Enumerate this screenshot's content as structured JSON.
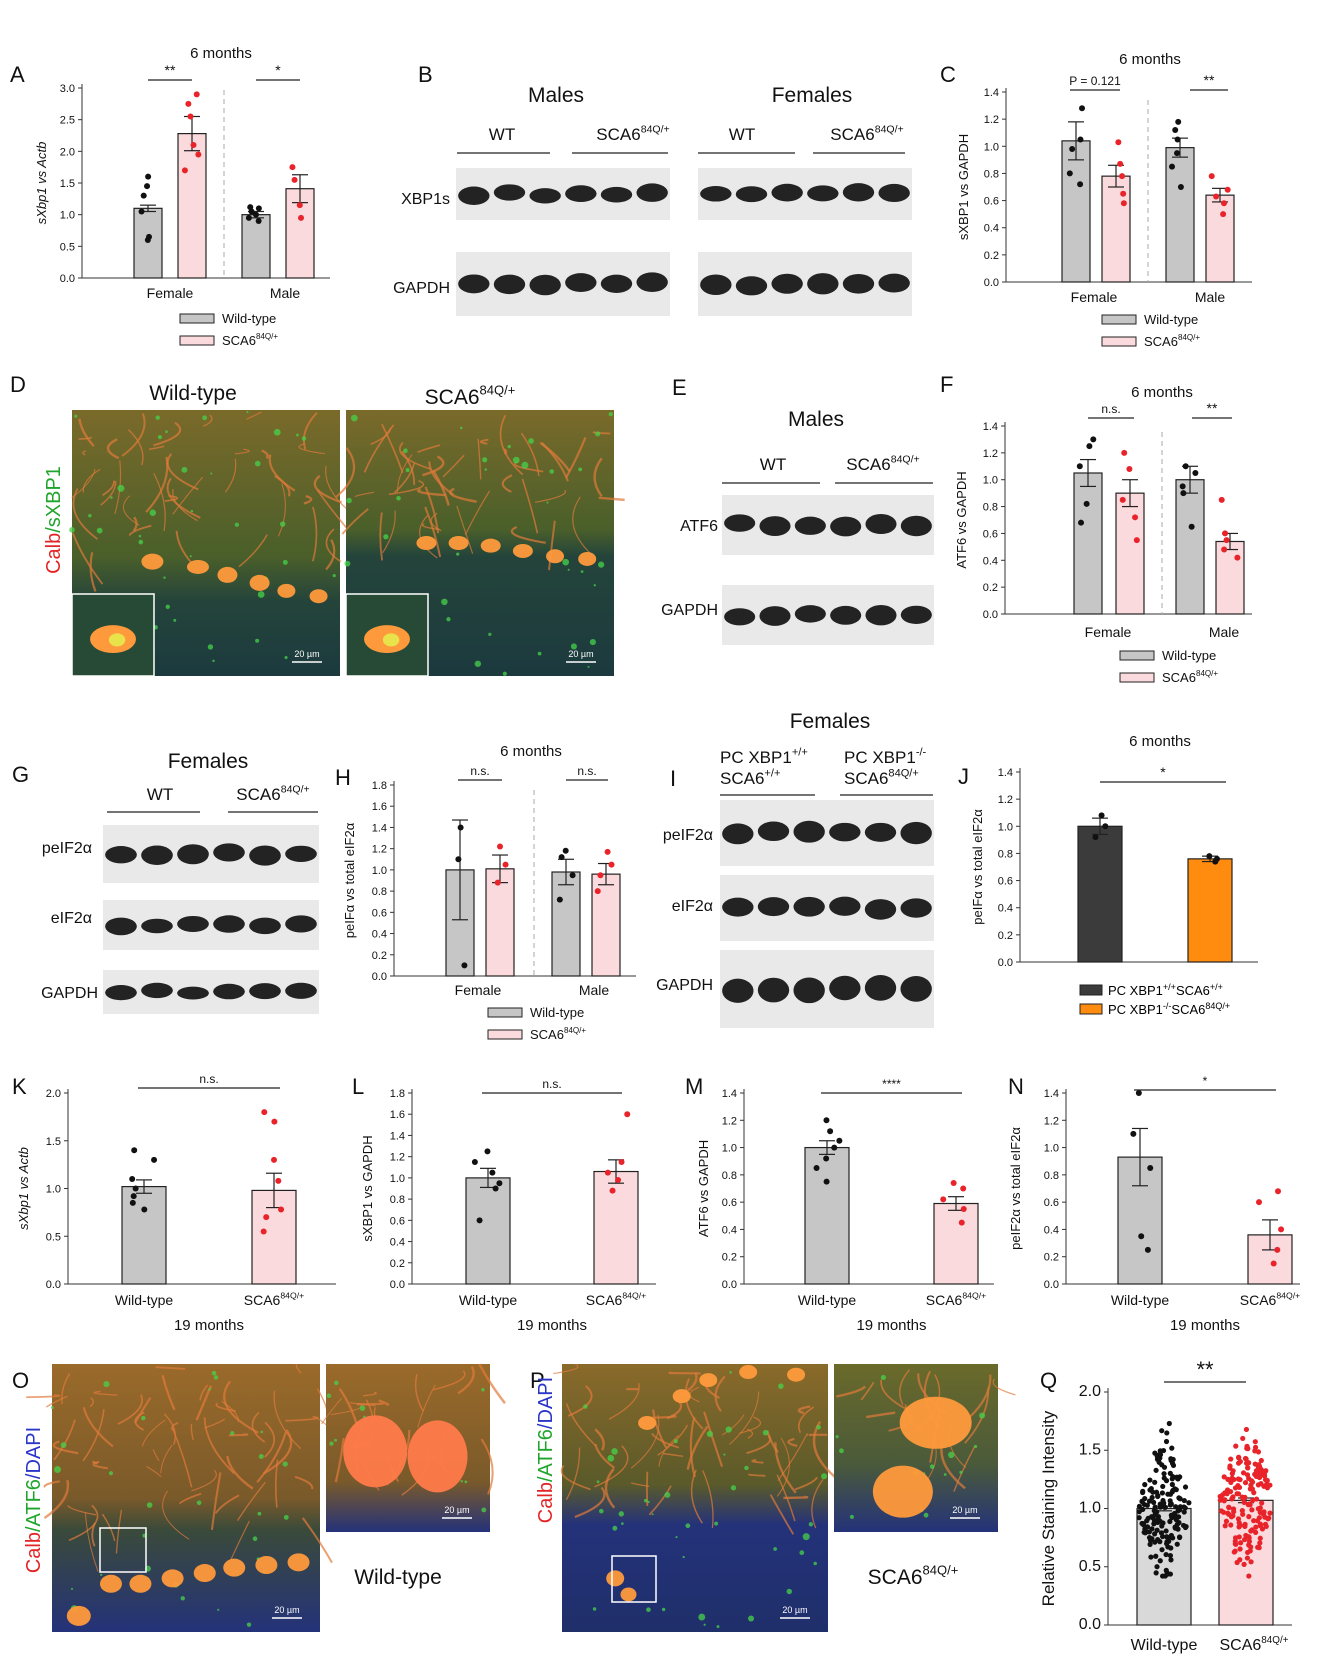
{
  "panel_letters": [
    "A",
    "B",
    "C",
    "D",
    "E",
    "F",
    "G",
    "H",
    "I",
    "J",
    "K",
    "L",
    "M",
    "N",
    "O",
    "P",
    "Q"
  ],
  "common": {
    "wt": "Wild-type",
    "sca6_base": "SCA6",
    "sca6_sup": "84Q/+",
    "female": "Female",
    "male": "Male",
    "six_months": "6 months",
    "nineteen_months": "19 months",
    "wt_short": "WT",
    "males": "Males",
    "females": "Females",
    "scale_bar": "20 µm",
    "ns": "n.s.",
    "colors": {
      "wt_fill": "#c6c6c6",
      "sca6_fill": "#fadadd",
      "red_dot": "#e8242a",
      "dark_bar": "#3b3b3b",
      "orange_bar": "#ff8c0f"
    }
  },
  "blots": {
    "b_labels": [
      "XBP1s",
      "GAPDH"
    ],
    "e_labels": [
      "ATF6",
      "GAPDH"
    ],
    "g_labels": [
      "peIF2α",
      "eIF2α",
      "GAPDH"
    ],
    "i_labels": [
      "peIF2α",
      "eIF2α",
      "GAPDH"
    ],
    "i_group1_line1": "PC XBP1",
    "i_group1_line1_sup": "+/+",
    "i_group1_line2": "SCA6",
    "i_group1_line2_sup": "+/+",
    "i_group2_line1": "PC XBP1",
    "i_group2_line1_sup": "-/-",
    "i_group2_line2": "SCA6",
    "i_group2_line2_sup": "84Q/+"
  },
  "micro": {
    "d_stain_a": "Calb",
    "d_stain_b": "/sXBP1",
    "o_stain_a": "Calb",
    "o_stain_b": "/ATF6",
    "o_stain_c": "/DAPI"
  },
  "chart_data": [
    {
      "panel": "A",
      "type": "bar",
      "title": "6 months",
      "ylabel": "sXbp1 vs Actb",
      "ylim": [
        0,
        3.0
      ],
      "yticks": [
        0.0,
        0.5,
        1.0,
        1.5,
        2.0,
        2.5,
        3.0
      ],
      "categories": [
        "Female",
        "Male"
      ],
      "series": [
        {
          "name": "Wild-type",
          "values": [
            1.1,
            1.0
          ]
        },
        {
          "name": "SCA6^84Q/+",
          "values": [
            2.28,
            1.41
          ]
        }
      ],
      "significance": [
        "**",
        "*"
      ]
    },
    {
      "panel": "C",
      "type": "bar",
      "title": "6 months",
      "ylabel": "sXBP1 vs GAPDH",
      "ylim": [
        0,
        1.4
      ],
      "yticks": [
        0.0,
        0.2,
        0.4,
        0.6,
        0.8,
        1.0,
        1.2,
        1.4
      ],
      "categories": [
        "Female",
        "Male"
      ],
      "series": [
        {
          "name": "Wild-type",
          "values": [
            1.04,
            0.99
          ]
        },
        {
          "name": "SCA6^84Q/+",
          "values": [
            0.78,
            0.64
          ]
        }
      ],
      "significance": [
        "P = 0.121",
        "**"
      ]
    },
    {
      "panel": "F",
      "type": "bar",
      "title": "6 months",
      "ylabel": "ATF6 vs GAPDH",
      "ylim": [
        0,
        1.4
      ],
      "yticks": [
        0.0,
        0.2,
        0.4,
        0.6,
        0.8,
        1.0,
        1.2,
        1.4
      ],
      "categories": [
        "Female",
        "Male"
      ],
      "series": [
        {
          "name": "Wild-type",
          "values": [
            1.05,
            1.0
          ]
        },
        {
          "name": "SCA6^84Q/+",
          "values": [
            0.9,
            0.54
          ]
        }
      ],
      "significance": [
        "n.s.",
        "**"
      ]
    },
    {
      "panel": "H",
      "type": "bar",
      "title": "6 months",
      "ylabel": "peIFα vs total eIF2α",
      "ylim": [
        0,
        1.8
      ],
      "yticks": [
        0.0,
        0.2,
        0.4,
        0.6,
        0.8,
        1.0,
        1.2,
        1.4,
        1.6,
        1.8
      ],
      "categories": [
        "Female",
        "Male"
      ],
      "series": [
        {
          "name": "Wild-type",
          "values": [
            1.0,
            0.98
          ]
        },
        {
          "name": "SCA6^84Q/+",
          "values": [
            1.01,
            0.96
          ]
        }
      ],
      "significance": [
        "n.s.",
        "n.s."
      ]
    },
    {
      "panel": "J",
      "type": "bar",
      "title": "6 months",
      "ylabel": "peIFα vs total eIF2α",
      "ylim": [
        0,
        1.4
      ],
      "yticks": [
        0.0,
        0.2,
        0.4,
        0.6,
        0.8,
        1.0,
        1.2,
        1.4
      ],
      "categories": [
        "PC XBP1+/+SCA6+/+",
        "PC XBP1-/-SCA684Q/+"
      ],
      "values": [
        1.0,
        0.76
      ],
      "significance": [
        "*"
      ]
    },
    {
      "panel": "K",
      "type": "bar",
      "xlabel": "19 months",
      "ylabel": "sXbp1 vs Actb",
      "ylim": [
        0,
        2.0
      ],
      "yticks": [
        0.0,
        0.5,
        1.0,
        1.5,
        2.0
      ],
      "categories": [
        "Wild-type",
        "SCA6^84Q/+"
      ],
      "values": [
        1.02,
        0.98
      ],
      "significance": [
        "n.s."
      ]
    },
    {
      "panel": "L",
      "type": "bar",
      "xlabel": "19 months",
      "ylabel": "sXBP1 vs GAPDH",
      "ylim": [
        0,
        1.8
      ],
      "yticks": [
        0.0,
        0.2,
        0.4,
        0.6,
        0.8,
        1.0,
        1.2,
        1.4,
        1.6,
        1.8
      ],
      "categories": [
        "Wild-type",
        "SCA6^84Q/+"
      ],
      "values": [
        1.0,
        1.06
      ],
      "significance": [
        "n.s."
      ]
    },
    {
      "panel": "M",
      "type": "bar",
      "xlabel": "19 months",
      "ylabel": "ATF6 vs GAPDH",
      "ylim": [
        0,
        1.4
      ],
      "yticks": [
        0.0,
        0.2,
        0.4,
        0.6,
        0.8,
        1.0,
        1.2,
        1.4
      ],
      "categories": [
        "Wild-type",
        "SCA6^84Q/+"
      ],
      "values": [
        1.0,
        0.59
      ],
      "significance": [
        "****"
      ]
    },
    {
      "panel": "N",
      "type": "bar",
      "xlabel": "19 months",
      "ylabel": "peIF2α vs total eIF2α",
      "ylim": [
        0,
        1.4
      ],
      "yticks": [
        0.0,
        0.2,
        0.4,
        0.6,
        0.8,
        1.0,
        1.2,
        1.4
      ],
      "categories": [
        "Wild-type",
        "SCA6^84Q/+"
      ],
      "values": [
        0.93,
        0.36
      ],
      "significance": [
        "*"
      ]
    },
    {
      "panel": "Q",
      "type": "bar",
      "ylabel": "Relative Staining Intensity",
      "ylim": [
        0,
        2.0
      ],
      "yticks": [
        0.0,
        0.5,
        1.0,
        1.5,
        2.0
      ],
      "categories": [
        "Wild-type",
        "SCA6^84Q/+"
      ],
      "values": [
        1.0,
        1.07
      ],
      "significance": [
        "**"
      ]
    }
  ]
}
